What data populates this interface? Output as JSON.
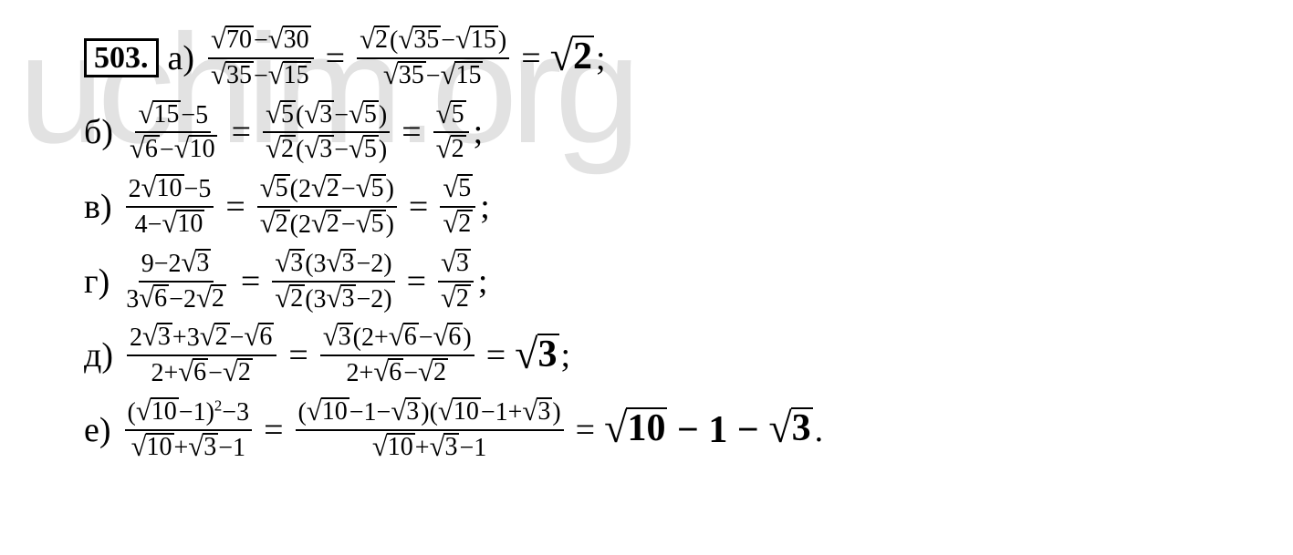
{
  "watermark": "uchim.org",
  "problem_number": "503.",
  "lines": [
    {
      "label": "а)",
      "frac1_num_a": "70",
      "frac1_num_b": "30",
      "frac1_den_a": "35",
      "frac1_den_b": "15",
      "frac2_coef": "2",
      "frac2_num_a": "35",
      "frac2_num_b": "15",
      "frac2_den_a": "35",
      "frac2_den_b": "15",
      "result": "2",
      "punct": ";"
    },
    {
      "label": "б)",
      "frac1_num_a": "15",
      "frac1_num_b": "5",
      "frac1_den_a": "6",
      "frac1_den_b": "10",
      "frac2_num_coef": "5",
      "frac2_num_a": "3",
      "frac2_num_b": "5",
      "frac2_den_coef": "2",
      "frac2_den_a": "3",
      "frac2_den_b": "5",
      "result_num": "5",
      "result_den": "2",
      "punct": ";"
    },
    {
      "label": "в)",
      "frac1_num_coef": "2",
      "frac1_num_a": "10",
      "frac1_num_b": "5",
      "frac1_den_a": "4",
      "frac1_den_b": "10",
      "frac2_num_coef": "5",
      "frac2_num_a_coef": "2",
      "frac2_num_a": "2",
      "frac2_num_b": "5",
      "frac2_den_coef": "2",
      "frac2_den_a_coef": "2",
      "frac2_den_a": "2",
      "frac2_den_b": "5",
      "result_num": "5",
      "result_den": "2",
      "punct": ";"
    },
    {
      "label": "г)",
      "frac1_num_a": "9",
      "frac1_num_b_coef": "2",
      "frac1_num_b": "3",
      "frac1_den_a_coef": "3",
      "frac1_den_a": "6",
      "frac1_den_b_coef": "2",
      "frac1_den_b": "2",
      "frac2_num_coef": "3",
      "frac2_num_a_coef": "3",
      "frac2_num_a": "3",
      "frac2_num_b": "2",
      "frac2_den_coef": "2",
      "frac2_den_a_coef": "3",
      "frac2_den_a": "3",
      "frac2_den_b": "2",
      "result_num": "3",
      "result_den": "2",
      "punct": ";"
    },
    {
      "label": "д)",
      "frac1_num_a_coef": "2",
      "frac1_num_a": "3",
      "frac1_num_b_coef": "3",
      "frac1_num_b": "2",
      "frac1_num_c": "6",
      "frac1_den_a": "2",
      "frac1_den_b": "6",
      "frac1_den_c": "2",
      "frac2_num_coef": "3",
      "frac2_num_a": "2",
      "frac2_num_b": "6",
      "frac2_num_c": "6",
      "frac2_den_a": "2",
      "frac2_den_b": "6",
      "frac2_den_c": "2",
      "result": "3",
      "punct": ";"
    },
    {
      "label": "е)",
      "frac1_num_base": "10",
      "frac1_num_sub": "1",
      "frac1_num_exp": "2",
      "frac1_num_c": "3",
      "frac1_den_a": "10",
      "frac1_den_b": "3",
      "frac1_den_c": "1",
      "frac2_num_p1_a": "10",
      "frac2_num_p1_b": "1",
      "frac2_num_p1_c": "3",
      "frac2_num_p2_a": "10",
      "frac2_num_p2_b": "1",
      "frac2_num_p2_c": "3",
      "frac2_den_a": "10",
      "frac2_den_b": "3",
      "frac2_den_c": "1",
      "result_a": "10",
      "result_b": "1",
      "result_c": "3",
      "punct": "."
    }
  ],
  "colors": {
    "text": "#000000",
    "bg": "#ffffff",
    "watermark": "#e2e2e2"
  }
}
